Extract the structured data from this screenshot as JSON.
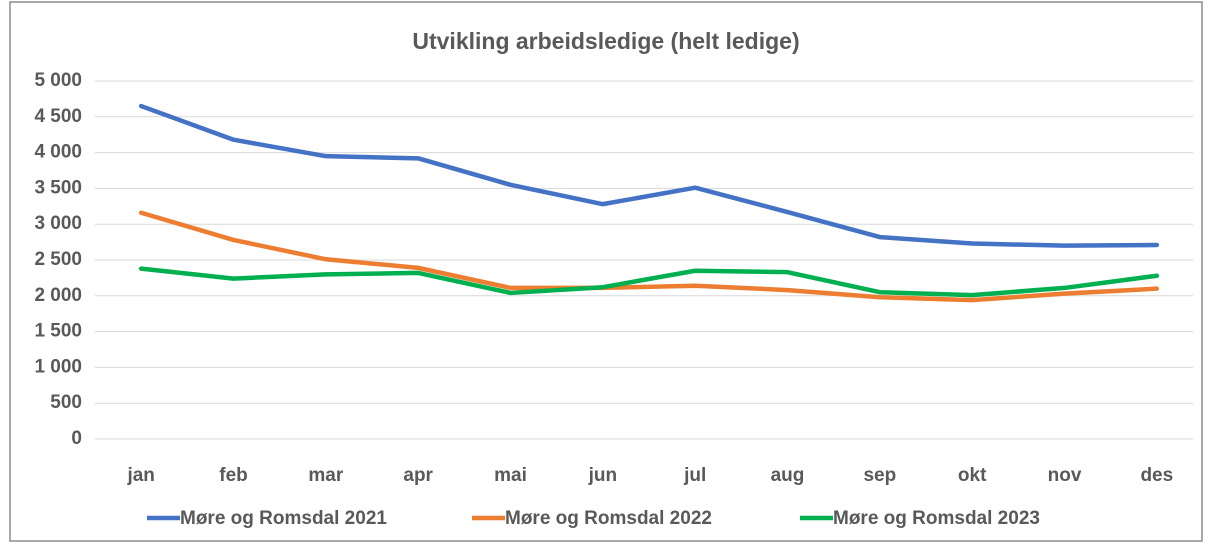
{
  "chart_data": {
    "type": "line",
    "title": "Utvikling arbeidsledige (helt ledige)",
    "categories": [
      "jan",
      "feb",
      "mar",
      "apr",
      "mai",
      "jun",
      "jul",
      "aug",
      "sep",
      "okt",
      "nov",
      "des"
    ],
    "series": [
      {
        "name": "Møre og Romsdal 2021",
        "color": "#4472c4",
        "values": [
          4650,
          4180,
          3950,
          3920,
          3550,
          3280,
          3510,
          3170,
          2820,
          2730,
          2700,
          2710
        ]
      },
      {
        "name": "Møre og Romsdal 2022",
        "color": "#ed7d31",
        "values": [
          3160,
          2780,
          2510,
          2390,
          2110,
          2110,
          2140,
          2080,
          1980,
          1940,
          2030,
          2100
        ]
      },
      {
        "name": "Møre og Romsdal 2023",
        "color": "#00b050",
        "values": [
          2380,
          2240,
          2300,
          2320,
          2040,
          2120,
          2350,
          2330,
          2050,
          2010,
          2110,
          2280
        ]
      }
    ],
    "ylim": [
      0,
      5000
    ],
    "yticks": [
      0,
      500,
      {
        "value": 1000,
        "label": "1 000"
      },
      {
        "value": 1500,
        "label": "1 500"
      },
      {
        "value": 2000,
        "label": "2 000"
      },
      {
        "value": 2500,
        "label": "2 500"
      },
      {
        "value": 3000,
        "label": "3 000"
      },
      {
        "value": 3500,
        "label": "3 500"
      },
      {
        "value": 4000,
        "label": "4 000"
      },
      {
        "value": 4500,
        "label": "4 500"
      },
      {
        "value": 5000,
        "label": "5 000"
      }
    ],
    "grid": true,
    "legend": "bottom"
  }
}
